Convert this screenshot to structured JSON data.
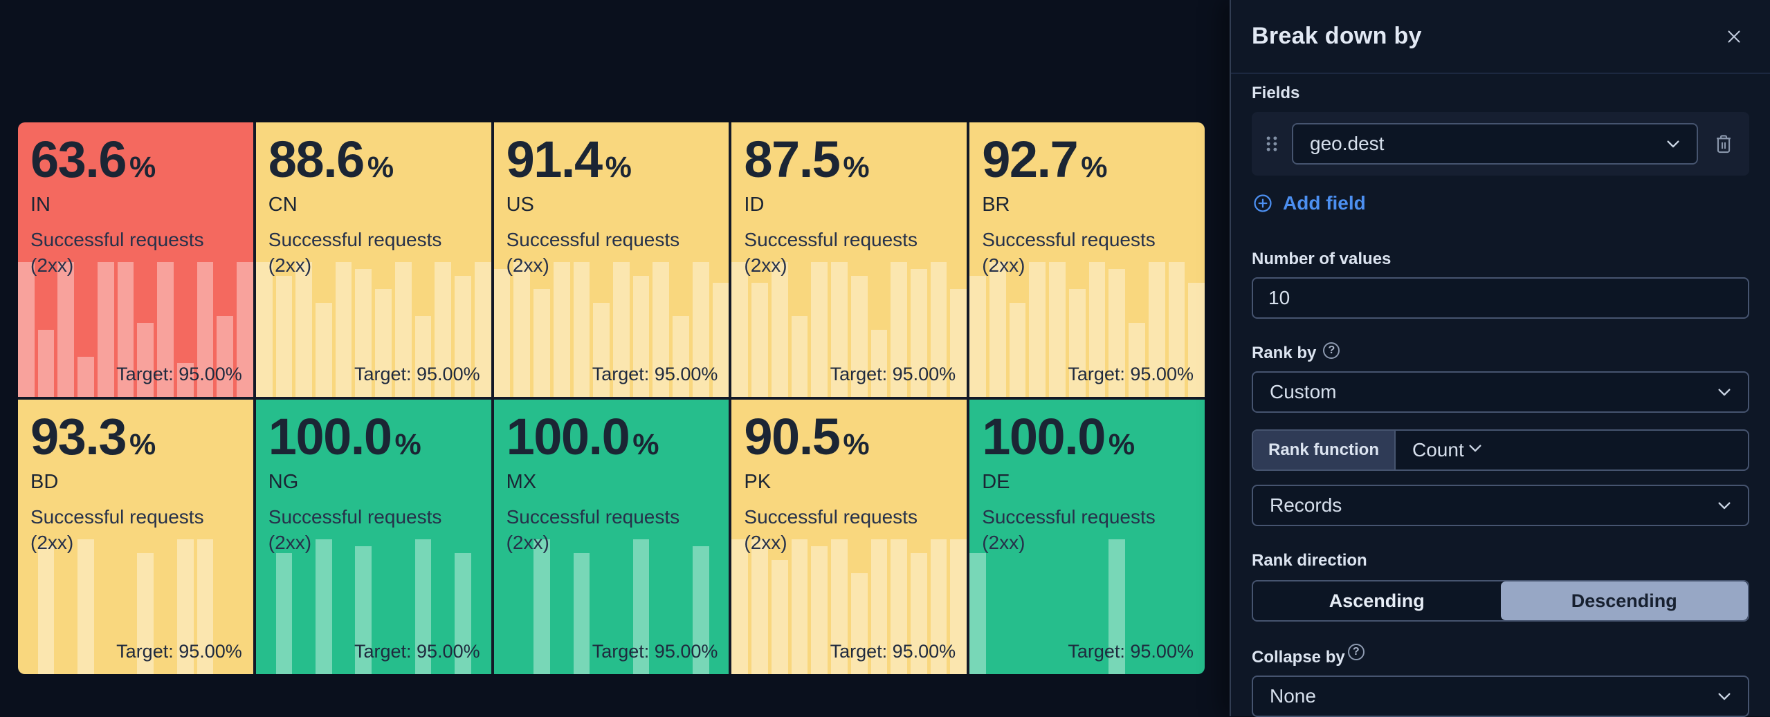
{
  "colors": {
    "page_bg": "#0A101D",
    "panel_bg": "#0E1726",
    "accent_blue": "#4C8FF0",
    "selected_segment_bg": "#97A7C5",
    "status": {
      "danger": "#F4695F",
      "warning": "#F9D77E",
      "success": "#26BE8C"
    },
    "bar_overlay": "rgba(255,255,255,0.38)"
  },
  "tiles": [
    {
      "value": "63.6",
      "unit": "%",
      "code": "IN",
      "desc": [
        "Successful requests",
        "(2xx)"
      ],
      "target": "Target: 95.00%",
      "status": "danger",
      "bars": [
        1,
        0.5,
        1,
        0.3,
        1,
        1,
        0.55,
        1,
        0.25,
        1,
        0.6,
        1
      ]
    },
    {
      "value": "88.6",
      "unit": "%",
      "code": "CN",
      "desc": [
        "Successful requests",
        "(2xx)"
      ],
      "target": "Target: 95.00%",
      "status": "warning",
      "bars": [
        1,
        0.9,
        1,
        0.7,
        1,
        0.95,
        0.8,
        1,
        0.6,
        1,
        0.9,
        1
      ]
    },
    {
      "value": "91.4",
      "unit": "%",
      "code": "US",
      "desc": [
        "Successful requests",
        "(2xx)"
      ],
      "target": "Target: 95.00%",
      "status": "warning",
      "bars": [
        0.95,
        1,
        0.8,
        1,
        1,
        0.7,
        1,
        0.9,
        1,
        0.6,
        1,
        0.85
      ]
    },
    {
      "value": "87.5",
      "unit": "%",
      "code": "ID",
      "desc": [
        "Successful requests",
        "(2xx)"
      ],
      "target": "Target: 95.00%",
      "status": "warning",
      "bars": [
        1,
        0.85,
        1,
        0.6,
        1,
        1,
        0.9,
        0.5,
        1,
        0.95,
        1,
        0.8
      ]
    },
    {
      "value": "92.7",
      "unit": "%",
      "code": "BR",
      "desc": [
        "Successful requests",
        "(2xx)"
      ],
      "target": "Target: 95.00%",
      "status": "warning",
      "bars": [
        0.9,
        1,
        0.7,
        1,
        1,
        0.8,
        1,
        0.95,
        0.55,
        1,
        1,
        0.85
      ]
    },
    {
      "value": "93.3",
      "unit": "%",
      "code": "BD",
      "desc": [
        "Successful requests",
        "(2xx)"
      ],
      "target": "Target: 95.00%",
      "status": "warning",
      "bars": [
        0,
        0.95,
        0,
        1,
        0,
        0,
        0.9,
        0,
        1,
        1,
        0,
        0
      ]
    },
    {
      "value": "100.0",
      "unit": "%",
      "code": "NG",
      "desc": [
        "Successful requests",
        "(2xx)"
      ],
      "target": "Target: 95.00%",
      "status": "success",
      "bars": [
        0,
        0.9,
        0,
        1,
        0,
        0.95,
        0,
        0,
        1,
        0,
        0.9,
        0
      ]
    },
    {
      "value": "100.0",
      "unit": "%",
      "code": "MX",
      "desc": [
        "Successful requests",
        "(2xx)"
      ],
      "target": "Target: 95.00%",
      "status": "success",
      "bars": [
        0,
        0,
        1,
        0,
        0.9,
        0,
        0,
        1,
        0,
        0,
        0.95,
        0
      ]
    },
    {
      "value": "90.5",
      "unit": "%",
      "code": "PK",
      "desc": [
        "Successful requests",
        "(2xx)"
      ],
      "target": "Target: 95.00%",
      "status": "warning",
      "bars": [
        1,
        1,
        0.85,
        1,
        0.95,
        1,
        0.75,
        1,
        1,
        0.9,
        1,
        1
      ]
    },
    {
      "value": "100.0",
      "unit": "%",
      "code": "DE",
      "desc": [
        "Successful requests",
        "(2xx)"
      ],
      "target": "Target: 95.00%",
      "status": "success",
      "bars": [
        0.9,
        0,
        0,
        0,
        0,
        0,
        0,
        1,
        0,
        0,
        0,
        0
      ]
    }
  ],
  "panel": {
    "title": "Break down by",
    "fields": {
      "label": "Fields",
      "value": "geo.dest",
      "add_label": "Add field"
    },
    "number_of_values": {
      "label": "Number of values",
      "value": "10"
    },
    "rank_by": {
      "label": "Rank by",
      "value": "Custom"
    },
    "rank_function": {
      "label": "Rank function",
      "value": "Count"
    },
    "rank_metric": {
      "value": "Records"
    },
    "rank_direction": {
      "label": "Rank direction",
      "options": [
        {
          "label": "Ascending",
          "selected": false
        },
        {
          "label": "Descending",
          "selected": true
        }
      ]
    },
    "collapse_by": {
      "label": "Collapse by",
      "value": "None"
    }
  },
  "icons": {
    "question_glyph": "?"
  },
  "chart_data": {
    "type": "table",
    "title": "Successful requests (2xx) by geo.dest",
    "columns": [
      "geo.dest",
      "Successful requests (2xx) %",
      "Target %"
    ],
    "rows": [
      [
        "IN",
        63.6,
        95.0
      ],
      [
        "CN",
        88.6,
        95.0
      ],
      [
        "US",
        91.4,
        95.0
      ],
      [
        "ID",
        87.5,
        95.0
      ],
      [
        "BR",
        92.7,
        95.0
      ],
      [
        "BD",
        93.3,
        95.0
      ],
      [
        "NG",
        100.0,
        95.0
      ],
      [
        "MX",
        100.0,
        95.0
      ],
      [
        "PK",
        90.5,
        95.0
      ],
      [
        "DE",
        100.0,
        95.0
      ]
    ]
  }
}
